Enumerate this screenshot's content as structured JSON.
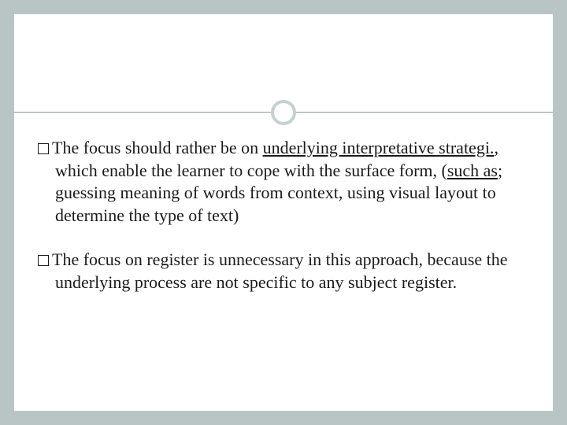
{
  "slide": {
    "background_color": "#b9c5c4",
    "card_background": "#ffffff",
    "rule_color": "#8f9c9a",
    "ring_color": "#c7d1d0",
    "text_color": "#1a1a1a",
    "font_family": "Georgia serif",
    "font_size_pt": 17,
    "paragraphs": [
      {
        "runs": [
          {
            "text": "The focus should rather be on ",
            "underline": false
          },
          {
            "text": "underlying interpretative strategi.",
            "underline": true
          },
          {
            "text": ", which enable the learner to cope with the surface form, (",
            "underline": false
          },
          {
            "text": "such as",
            "underline": true
          },
          {
            "text": "; guessing meaning of words from context, using visual layout to determine the type of text)",
            "underline": false
          }
        ]
      },
      {
        "runs": [
          {
            "text": "The focus on register is unnecessary in this approach, because the underlying process are not specific to any subject register.",
            "underline": false
          }
        ]
      }
    ]
  }
}
